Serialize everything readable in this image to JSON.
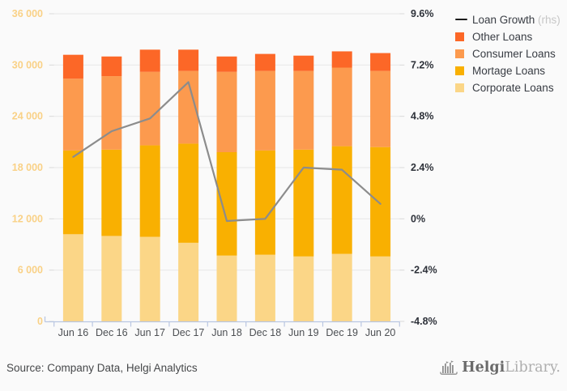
{
  "chart_data": {
    "type": "bar",
    "subtype": "stacked-bars-with-rhs-line",
    "title": "",
    "categories": [
      "Jun 16",
      "Dec 16",
      "Jun 17",
      "Dec 17",
      "Jun 18",
      "Dec 18",
      "Jun 19",
      "Dec 19",
      "Jun 20"
    ],
    "series": [
      {
        "name": "Corporate Loans",
        "type": "bar",
        "color": "#fbd687",
        "values": [
          10200,
          10000,
          9900,
          9200,
          7700,
          7800,
          7600,
          7900,
          7600
        ]
      },
      {
        "name": "Mortage Loans",
        "type": "bar",
        "color": "#f9b001",
        "values": [
          9800,
          10100,
          10700,
          11600,
          12100,
          12200,
          12500,
          12600,
          12800
        ]
      },
      {
        "name": "Consumer Loans",
        "type": "bar",
        "color": "#fc9a4e",
        "values": [
          8400,
          8600,
          8600,
          8500,
          9400,
          9300,
          9200,
          9200,
          8900
        ]
      },
      {
        "name": "Other Loans",
        "type": "bar",
        "color": "#fc6727",
        "values": [
          2800,
          2300,
          2600,
          2500,
          1800,
          2000,
          1800,
          1900,
          2100
        ]
      },
      {
        "name": "Loan Growth",
        "type": "line",
        "axis": "rhs",
        "color": "#8c8c8c",
        "values_pct": [
          2.9,
          4.1,
          4.7,
          6.4,
          -0.1,
          0.0,
          2.4,
          2.3,
          0.7
        ]
      }
    ],
    "left_axis": {
      "min": 0,
      "max": 36000,
      "ticks": [
        {
          "label": "0",
          "value": 0
        },
        {
          "label": "6 000",
          "value": 6000
        },
        {
          "label": "12 000",
          "value": 12000
        },
        {
          "label": "18 000",
          "value": 18000
        },
        {
          "label": "24 000",
          "value": 24000
        },
        {
          "label": "30 000",
          "value": 30000
        },
        {
          "label": "36 000",
          "value": 36000
        }
      ],
      "label_color": "#f9d186"
    },
    "right_axis": {
      "min": -4.8,
      "max": 9.6,
      "ticks": [
        {
          "label": "-4.8%",
          "value": -4.8
        },
        {
          "label": "-2.4%",
          "value": -2.4
        },
        {
          "label": "0%",
          "value": 0
        },
        {
          "label": "2.4%",
          "value": 2.4
        },
        {
          "label": "4.8%",
          "value": 4.8
        },
        {
          "label": "7.2%",
          "value": 7.2
        },
        {
          "label": "9.6%",
          "value": 9.6
        }
      ],
      "label_color": "#2e323a"
    },
    "grid": true,
    "legend_position": "top-right",
    "colors": {
      "background": "#fafafa",
      "gridline": "#e9e9e9",
      "side_tick": "#dadada",
      "x_axis_line": "#b9c6e2",
      "x_label": "#4c4f53",
      "line_series": "#8c8c8c"
    }
  },
  "legend": {
    "items": [
      {
        "label": "Loan Growth",
        "suffix": " (rhs)",
        "marker": "line",
        "color": "#1c1c1c"
      },
      {
        "label": "Other Loans",
        "suffix": "",
        "marker": "square",
        "color": "#fc6727"
      },
      {
        "label": "Consumer Loans",
        "suffix": "",
        "marker": "square",
        "color": "#fc9a4e"
      },
      {
        "label": "Mortage Loans",
        "suffix": "",
        "marker": "square",
        "color": "#f9b001"
      },
      {
        "label": "Corporate Loans",
        "suffix": "",
        "marker": "square",
        "color": "#fbd687"
      }
    ]
  },
  "footer": {
    "source": "Source: Company Data, Helgi Analytics",
    "logo": {
      "bold": "Helgi",
      "light": "Library."
    }
  }
}
